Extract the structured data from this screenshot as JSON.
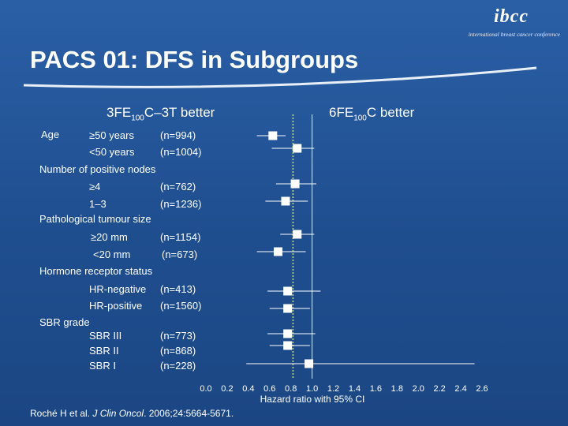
{
  "slide": {
    "title": "PACS 01: DFS in Subgroups",
    "logo": {
      "mark": "ibcc",
      "subtitle": "international breast cancer conference"
    },
    "left_header": {
      "pre": "3FE",
      "sub": "100",
      "post": "C–3T better"
    },
    "right_header": {
      "pre": "6FE",
      "sub": "100",
      "post": "C better"
    },
    "citation_pre": "Roché H et al. ",
    "citation_journal": "J Clin Oncol",
    "citation_post": ". 2006;24:5664-5671."
  },
  "chart_data": {
    "type": "forest",
    "xlabel": "Hazard ratio with 95% CI",
    "xlim": [
      0,
      2.6
    ],
    "xticks": [
      "0.0",
      "0.2",
      "0.4",
      "0.6",
      "0.8",
      "1.0",
      "1.2",
      "1.4",
      "1.6",
      "1.8",
      "2.0",
      "2.2",
      "2.4",
      "2.6"
    ],
    "reference_line": 1.0,
    "overall_line": 0.82,
    "headings": [
      "Age",
      "Number of positive nodes",
      "Pathological tumour size",
      "Hormone receptor status",
      "SBR grade"
    ],
    "rows": [
      {
        "label": "≥50 years",
        "n": "(n=994)",
        "hr": 0.63,
        "lo": 0.48,
        "hi": 0.75
      },
      {
        "label": "<50  years",
        "n": "(n=1004)",
        "hr": 0.86,
        "lo": 0.62,
        "hi": 1.02
      },
      {
        "label": "≥4",
        "n": "(n=762)",
        "hr": 0.84,
        "lo": 0.66,
        "hi": 1.04
      },
      {
        "label": "1–3",
        "n": "(n=1236)",
        "hr": 0.75,
        "lo": 0.56,
        "hi": 0.96
      },
      {
        "label": "≥20 mm",
        "n": "(n=1154)",
        "hr": 0.86,
        "lo": 0.7,
        "hi": 1.02
      },
      {
        "label": "<20 mm",
        "n": "(n=673)",
        "hr": 0.68,
        "lo": 0.48,
        "hi": 0.94
      },
      {
        "label": "HR-negative",
        "n": "(n=413)",
        "hr": 0.77,
        "lo": 0.58,
        "hi": 1.08
      },
      {
        "label": "HR-positive",
        "n": "(n=1560)",
        "hr": 0.77,
        "lo": 0.6,
        "hi": 0.98
      },
      {
        "label": "SBR III",
        "n": "(n=773)",
        "hr": 0.77,
        "lo": 0.58,
        "hi": 1.03
      },
      {
        "label": "SBR II",
        "n": "(n=868)",
        "hr": 0.77,
        "lo": 0.6,
        "hi": 0.98
      },
      {
        "label": "SBR I",
        "n": "(n=228)",
        "hr": 0.97,
        "lo": 0.38,
        "hi": 2.53
      }
    ],
    "colors": {
      "marker": "#ffffff",
      "ci": "#ffffff",
      "reference": "#e8e8e8",
      "overall": "#e6e61e"
    }
  }
}
